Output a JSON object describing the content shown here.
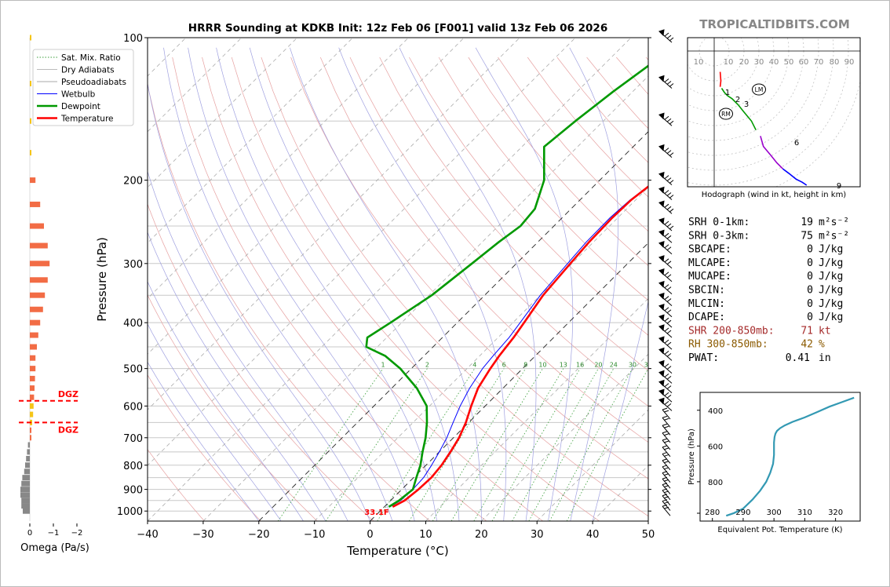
{
  "header": {
    "title": "HRRR Sounding at KDKB Init: 12z Feb 06 [F001] valid 13z Feb 06 2026",
    "brand": "TROPICALTIDBITS.COM"
  },
  "chart_data": [
    {
      "type": "line",
      "name": "skew-t",
      "xlabel": "Temperature (°C)",
      "ylabel": "Pressure (hPa)",
      "xlim": [
        -40,
        50
      ],
      "ylim": [
        1050,
        100
      ],
      "y_scale": "log",
      "x_ticks": [
        "−40",
        "−30",
        "−20",
        "−10",
        "0",
        "10",
        "20",
        "30",
        "40",
        "50"
      ],
      "y_ticks": [
        "100",
        "200",
        "300",
        "400",
        "500",
        "600",
        "700",
        "800",
        "900",
        "1000"
      ],
      "legend": {
        "position": "top-left",
        "entries": [
          "Sat. Mix. Ratio",
          "Dry Adiabats",
          "Pseudoadiabats",
          "Wetbulb",
          "Dewpoint",
          "Temperature"
        ]
      },
      "mixing_ratio_labels": [
        "1",
        "2",
        "4",
        "6",
        "8",
        "10",
        "13",
        "16",
        "20",
        "24",
        "30",
        "36"
      ],
      "surface_label": "33.1F",
      "series": [
        {
          "name": "Temperature",
          "color": "#ff0000",
          "p": [
            980,
            950,
            900,
            850,
            800,
            750,
            700,
            650,
            600,
            550,
            500,
            470,
            430,
            400,
            350,
            300,
            270,
            240,
            220,
            200,
            170,
            150,
            130,
            110,
            100
          ],
          "t": [
            1.5,
            2.5,
            3.0,
            3.2,
            2.8,
            2.0,
            1.0,
            -0.5,
            -2.5,
            -4.5,
            -5.8,
            -6.5,
            -7.2,
            -8.0,
            -9.5,
            -10.3,
            -10.8,
            -11.0,
            -10.8,
            -9.8,
            -7.5,
            -5.5,
            -4.0,
            -3.0,
            -2.5
          ]
        },
        {
          "name": "Wetbulb",
          "color": "#0000ff",
          "p": [
            980,
            950,
            900,
            850,
            800,
            750,
            700,
            650,
            600,
            550,
            500,
            470,
            430,
            400,
            350,
            300,
            270,
            240,
            220,
            200,
            170,
            150,
            130,
            110,
            100
          ],
          "t": [
            1.0,
            1.8,
            2.0,
            1.8,
            1.0,
            0.0,
            -1.2,
            -2.8,
            -4.5,
            -6.0,
            -7.2,
            -7.6,
            -8.0,
            -8.7,
            -10.0,
            -10.8,
            -11.3,
            -11.4,
            -11.0,
            -9.9,
            -7.5,
            -5.8,
            -4.5,
            -3.5,
            -3.0
          ]
        },
        {
          "name": "Dewpoint",
          "color": "#009900",
          "p": [
            980,
            950,
            900,
            850,
            800,
            750,
            700,
            650,
            600,
            550,
            500,
            470,
            450,
            430,
            400,
            350,
            300,
            270,
            250,
            230,
            200,
            170,
            150,
            130,
            100
          ],
          "t": [
            0.8,
            1.5,
            2.0,
            0.5,
            -1.0,
            -3.0,
            -5.0,
            -7.5,
            -10.5,
            -15.5,
            -22.0,
            -27.0,
            -32.0,
            -33.5,
            -32.0,
            -29.5,
            -28.0,
            -27.0,
            -26.0,
            -26.5,
            -30.0,
            -36.0,
            -35.0,
            -33.5,
            -30.0
          ]
        }
      ]
    },
    {
      "type": "bar",
      "name": "omega",
      "xlabel": "Omega (Pa/s)",
      "x_ticks": [
        "0",
        "−1",
        "−2"
      ],
      "dgz_label": "DGZ",
      "dgz_bounds_hpa": [
        585,
        650
      ],
      "levels_hpa": [
        1000,
        975,
        950,
        925,
        900,
        875,
        850,
        825,
        800,
        775,
        750,
        725,
        700,
        675,
        650,
        625,
        600,
        575,
        550,
        525,
        500,
        475,
        450,
        425,
        400,
        375,
        350,
        325,
        300,
        275,
        250,
        225,
        200,
        175,
        150,
        125,
        100
      ],
      "values": [
        -0.15,
        -0.18,
        -0.18,
        -0.2,
        -0.2,
        -0.18,
        -0.16,
        -0.12,
        -0.1,
        -0.08,
        -0.06,
        -0.04,
        0,
        0,
        0.05,
        0.07,
        0.08,
        0.09,
        0.1,
        0.11,
        0.12,
        0.12,
        0.15,
        0.18,
        0.22,
        0.28,
        0.32,
        0.38,
        0.42,
        0.38,
        0.3,
        0.22,
        0.12,
        0.03,
        0.03,
        0.02,
        0.02
      ],
      "colors": {
        "positive": "#f26c45",
        "negative": "#888888",
        "dgz": "#f5c518",
        "dgz_line": "#ff0000"
      }
    },
    {
      "type": "line",
      "name": "hodograph",
      "caption": "Hodograph (wind in kt, height in km)",
      "ring_labels": [
        "10",
        "10",
        "20",
        "30",
        "40",
        "50",
        "60",
        "70",
        "80",
        "90"
      ],
      "markers": [
        "LM",
        "RM"
      ],
      "height_labels": [
        "1",
        "2",
        "3",
        "6",
        "9"
      ],
      "x": [
        8,
        9,
        8,
        10,
        14,
        18,
        24,
        32,
        40,
        50,
        56,
        62,
        66,
        76,
        84,
        92,
        100,
        110,
        118,
        124
      ],
      "y": [
        -28,
        -40,
        -48,
        -50,
        -56,
        -60,
        -64,
        -72,
        -82,
        -94,
        -106,
        -114,
        -128,
        -140,
        -150,
        -158,
        -164,
        -172,
        -176,
        -180
      ],
      "segment_colors": [
        "#ff0000",
        "#ff0000",
        "#009900",
        "#9900cc",
        "#0000ff"
      ]
    },
    {
      "type": "line",
      "name": "theta-e",
      "xlabel": "Equivalent Pot. Temperature (K)",
      "ylabel": "Pressure (hPa)",
      "x_ticks": [
        "280",
        "290",
        "300",
        "310",
        "320"
      ],
      "y_ticks": [
        "400",
        "600",
        "800"
      ],
      "xlim": [
        276,
        328
      ],
      "ylim": [
        1020,
        300
      ],
      "color": "#3399b3",
      "theta_e": [
        284.5,
        287,
        290,
        293,
        295.5,
        297.5,
        298.8,
        299.7,
        300,
        300,
        300,
        300.2,
        300.5,
        301,
        302,
        303.5,
        306,
        310,
        314,
        318,
        322,
        326
      ],
      "p": [
        990,
        975,
        950,
        900,
        850,
        800,
        750,
        700,
        650,
        620,
        580,
        550,
        530,
        515,
        500,
        485,
        465,
        440,
        410,
        380,
        355,
        330
      ]
    }
  ],
  "indices": [
    {
      "label": "SRH 0-1km:",
      "value": "19",
      "unit": "m²s⁻²",
      "color": "#000000"
    },
    {
      "label": "SRH 0-3km:",
      "value": "75",
      "unit": "m²s⁻²",
      "color": "#000000"
    },
    {
      "label": "SBCAPE:",
      "value": "0",
      "unit": "J/kg",
      "color": "#000000"
    },
    {
      "label": "MLCAPE:",
      "value": "0",
      "unit": "J/kg",
      "color": "#000000"
    },
    {
      "label": "MUCAPE:",
      "value": "0",
      "unit": "J/kg",
      "color": "#000000"
    },
    {
      "label": "SBCIN:",
      "value": "0",
      "unit": "J/kg",
      "color": "#000000"
    },
    {
      "label": "MLCIN:",
      "value": "0",
      "unit": "J/kg",
      "color": "#000000"
    },
    {
      "label": "DCAPE:",
      "value": "0",
      "unit": "J/kg",
      "color": "#000000"
    },
    {
      "label": "SHR 200-850mb:",
      "value": "71",
      "unit": "kt",
      "color": "#a52a2a"
    },
    {
      "label": "RH 300-850mb:",
      "value": "42",
      "unit": "%",
      "color": "#8b5a00"
    },
    {
      "label": "PWAT:",
      "value": "0.41",
      "unit": "in",
      "color": "#000000"
    }
  ]
}
